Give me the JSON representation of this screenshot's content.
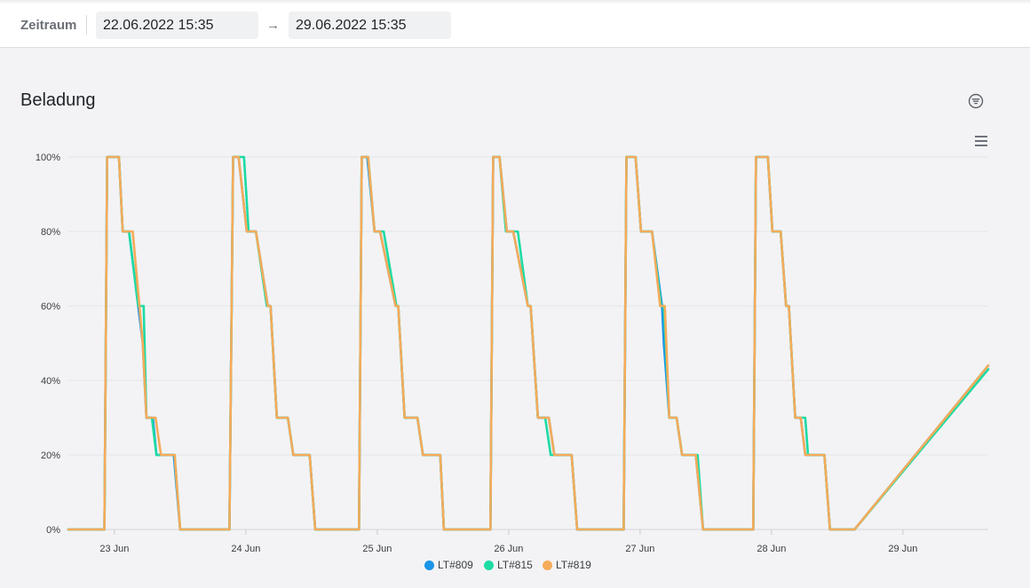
{
  "toolbar": {
    "range_label": "Zeitraum",
    "start_value": "22.06.2022 15:35",
    "end_value": "29.06.2022 15:35",
    "arrow": "→"
  },
  "card": {
    "title": "Beladung",
    "filter_icon": "filter-icon",
    "menu_icon": "hamburger-menu-icon"
  },
  "chart_data": {
    "type": "line",
    "title": "Beladung",
    "xlabel": "",
    "ylabel": "",
    "ylim": [
      0,
      100
    ],
    "yticks": [
      "0%",
      "20%",
      "40%",
      "60%",
      "80%",
      "100%"
    ],
    "xticks": [
      "23 Jun",
      "24 Jun",
      "25 Jun",
      "26 Jun",
      "27 Jun",
      "28 Jun",
      "29 Jun"
    ],
    "xlim": [
      "2022-06-22T15:35",
      "2022-06-29T15:35"
    ],
    "grid": true,
    "legend": "bottom",
    "series": [
      {
        "name": "LT#809",
        "color": "#1a95e8",
        "points": [
          [
            "2022-06-22T15:35",
            0
          ],
          [
            "2022-06-22T22:10",
            0
          ],
          [
            "2022-06-22T22:40",
            100
          ],
          [
            "2022-06-23T00:50",
            100
          ],
          [
            "2022-06-23T01:30",
            80
          ],
          [
            "2022-06-23T02:40",
            80
          ],
          [
            "2022-06-23T05:10",
            50
          ],
          [
            "2022-06-23T05:50",
            30
          ],
          [
            "2022-06-23T07:00",
            30
          ],
          [
            "2022-06-23T07:40",
            20
          ],
          [
            "2022-06-23T10:50",
            20
          ],
          [
            "2022-06-23T12:00",
            0
          ],
          [
            "2022-06-23T21:00",
            0
          ],
          [
            "2022-06-23T21:40",
            100
          ],
          [
            "2022-06-23T22:40",
            100
          ],
          [
            "2022-06-24T00:10",
            80
          ],
          [
            "2022-06-24T01:50",
            80
          ],
          [
            "2022-06-24T04:00",
            60
          ],
          [
            "2022-06-24T04:30",
            60
          ],
          [
            "2022-06-24T05:40",
            30
          ],
          [
            "2022-06-24T07:40",
            30
          ],
          [
            "2022-06-24T08:40",
            20
          ],
          [
            "2022-06-24T11:40",
            20
          ],
          [
            "2022-06-24T12:40",
            0
          ],
          [
            "2022-06-24T20:40",
            0
          ],
          [
            "2022-06-24T21:10",
            100
          ],
          [
            "2022-06-24T22:10",
            100
          ],
          [
            "2022-06-24T23:30",
            80
          ],
          [
            "2022-06-25T00:30",
            80
          ],
          [
            "2022-06-25T03:20",
            60
          ],
          [
            "2022-06-25T03:50",
            60
          ],
          [
            "2022-06-25T05:00",
            30
          ],
          [
            "2022-06-25T07:20",
            30
          ],
          [
            "2022-06-25T08:20",
            20
          ],
          [
            "2022-06-25T11:30",
            20
          ],
          [
            "2022-06-25T12:10",
            0
          ],
          [
            "2022-06-25T20:40",
            0
          ],
          [
            "2022-06-25T21:10",
            100
          ],
          [
            "2022-06-25T22:20",
            100
          ],
          [
            "2022-06-25T23:40",
            80
          ],
          [
            "2022-06-26T00:50",
            80
          ],
          [
            "2022-06-26T03:30",
            60
          ],
          [
            "2022-06-26T04:00",
            60
          ],
          [
            "2022-06-26T05:20",
            30
          ],
          [
            "2022-06-26T07:20",
            30
          ],
          [
            "2022-06-26T08:20",
            20
          ],
          [
            "2022-06-26T11:30",
            20
          ],
          [
            "2022-06-26T12:30",
            0
          ],
          [
            "2022-06-26T21:00",
            0
          ],
          [
            "2022-06-26T21:30",
            100
          ],
          [
            "2022-06-26T23:10",
            100
          ],
          [
            "2022-06-27T00:10",
            80
          ],
          [
            "2022-06-27T02:10",
            80
          ],
          [
            "2022-06-27T04:00",
            60
          ],
          [
            "2022-06-27T04:20",
            50
          ],
          [
            "2022-06-27T05:20",
            30
          ],
          [
            "2022-06-27T06:40",
            30
          ],
          [
            "2022-06-27T07:40",
            20
          ],
          [
            "2022-06-27T10:10",
            20
          ],
          [
            "2022-06-27T11:30",
            0
          ],
          [
            "2022-06-27T20:40",
            0
          ],
          [
            "2022-06-27T21:10",
            100
          ],
          [
            "2022-06-27T23:20",
            100
          ],
          [
            "2022-06-28T00:10",
            80
          ],
          [
            "2022-06-28T01:40",
            80
          ],
          [
            "2022-06-28T02:40",
            60
          ],
          [
            "2022-06-28T03:10",
            60
          ],
          [
            "2022-06-28T04:20",
            30
          ],
          [
            "2022-06-28T05:20",
            30
          ],
          [
            "2022-06-28T06:10",
            20
          ],
          [
            "2022-06-28T09:40",
            20
          ],
          [
            "2022-06-28T10:40",
            0
          ],
          [
            "2022-06-28T15:10",
            0
          ],
          [
            "2022-06-29T15:35",
            44
          ]
        ]
      },
      {
        "name": "LT#815",
        "color": "#1ddba4",
        "points": [
          [
            "2022-06-22T15:35",
            0
          ],
          [
            "2022-06-22T22:10",
            0
          ],
          [
            "2022-06-22T22:40",
            100
          ],
          [
            "2022-06-23T00:50",
            100
          ],
          [
            "2022-06-23T01:30",
            80
          ],
          [
            "2022-06-23T02:40",
            80
          ],
          [
            "2022-06-23T04:20",
            60
          ],
          [
            "2022-06-23T05:20",
            60
          ],
          [
            "2022-06-23T05:50",
            30
          ],
          [
            "2022-06-23T06:50",
            30
          ],
          [
            "2022-06-23T07:40",
            20
          ],
          [
            "2022-06-23T11:00",
            20
          ],
          [
            "2022-06-23T12:00",
            0
          ],
          [
            "2022-06-23T21:00",
            0
          ],
          [
            "2022-06-23T21:40",
            100
          ],
          [
            "2022-06-23T23:40",
            100
          ],
          [
            "2022-06-24T00:30",
            80
          ],
          [
            "2022-06-24T01:50",
            80
          ],
          [
            "2022-06-24T03:50",
            60
          ],
          [
            "2022-06-24T04:30",
            60
          ],
          [
            "2022-06-24T05:40",
            30
          ],
          [
            "2022-06-24T07:40",
            30
          ],
          [
            "2022-06-24T08:40",
            20
          ],
          [
            "2022-06-24T11:40",
            20
          ],
          [
            "2022-06-24T12:40",
            0
          ],
          [
            "2022-06-24T20:40",
            0
          ],
          [
            "2022-06-24T21:10",
            100
          ],
          [
            "2022-06-24T22:20",
            100
          ],
          [
            "2022-06-24T23:30",
            80
          ],
          [
            "2022-06-25T01:10",
            80
          ],
          [
            "2022-06-25T03:30",
            60
          ],
          [
            "2022-06-25T03:50",
            60
          ],
          [
            "2022-06-25T05:00",
            30
          ],
          [
            "2022-06-25T07:20",
            30
          ],
          [
            "2022-06-25T08:20",
            20
          ],
          [
            "2022-06-25T11:30",
            20
          ],
          [
            "2022-06-25T12:10",
            0
          ],
          [
            "2022-06-25T20:40",
            0
          ],
          [
            "2022-06-25T21:10",
            100
          ],
          [
            "2022-06-25T22:20",
            100
          ],
          [
            "2022-06-25T23:30",
            80
          ],
          [
            "2022-06-26T01:40",
            80
          ],
          [
            "2022-06-26T03:30",
            60
          ],
          [
            "2022-06-26T04:00",
            60
          ],
          [
            "2022-06-26T05:20",
            30
          ],
          [
            "2022-06-26T06:40",
            30
          ],
          [
            "2022-06-26T07:40",
            20
          ],
          [
            "2022-06-26T11:30",
            20
          ],
          [
            "2022-06-26T12:30",
            0
          ],
          [
            "2022-06-26T21:00",
            0
          ],
          [
            "2022-06-26T21:30",
            100
          ],
          [
            "2022-06-26T23:10",
            100
          ],
          [
            "2022-06-27T00:10",
            80
          ],
          [
            "2022-06-27T02:10",
            80
          ],
          [
            "2022-06-27T03:50",
            60
          ],
          [
            "2022-06-27T04:20",
            60
          ],
          [
            "2022-06-27T05:20",
            30
          ],
          [
            "2022-06-27T06:40",
            30
          ],
          [
            "2022-06-27T07:40",
            20
          ],
          [
            "2022-06-27T10:10",
            20
          ],
          [
            "2022-06-27T10:30",
            20
          ],
          [
            "2022-06-27T11:30",
            0
          ],
          [
            "2022-06-27T20:40",
            0
          ],
          [
            "2022-06-27T21:10",
            100
          ],
          [
            "2022-06-27T23:20",
            100
          ],
          [
            "2022-06-28T00:10",
            80
          ],
          [
            "2022-06-28T01:40",
            80
          ],
          [
            "2022-06-28T02:40",
            60
          ],
          [
            "2022-06-28T03:10",
            60
          ],
          [
            "2022-06-28T04:20",
            30
          ],
          [
            "2022-06-28T06:10",
            30
          ],
          [
            "2022-06-28T06:40",
            20
          ],
          [
            "2022-06-28T09:40",
            20
          ],
          [
            "2022-06-28T10:40",
            0
          ],
          [
            "2022-06-28T15:10",
            0
          ],
          [
            "2022-06-29T15:35",
            43
          ]
        ]
      },
      {
        "name": "LT#819",
        "color": "#f5ab5a",
        "points": [
          [
            "2022-06-22T15:35",
            0
          ],
          [
            "2022-06-22T22:10",
            0
          ],
          [
            "2022-06-22T22:40",
            100
          ],
          [
            "2022-06-23T00:50",
            100
          ],
          [
            "2022-06-23T01:30",
            80
          ],
          [
            "2022-06-23T03:20",
            80
          ],
          [
            "2022-06-23T05:10",
            50
          ],
          [
            "2022-06-23T05:50",
            30
          ],
          [
            "2022-06-23T07:30",
            30
          ],
          [
            "2022-06-23T08:30",
            20
          ],
          [
            "2022-06-23T11:00",
            20
          ],
          [
            "2022-06-23T12:00",
            0
          ],
          [
            "2022-06-23T21:00",
            0
          ],
          [
            "2022-06-23T21:40",
            100
          ],
          [
            "2022-06-23T22:40",
            100
          ],
          [
            "2022-06-24T00:10",
            80
          ],
          [
            "2022-06-24T01:50",
            80
          ],
          [
            "2022-06-24T04:00",
            60
          ],
          [
            "2022-06-24T04:30",
            60
          ],
          [
            "2022-06-24T05:40",
            30
          ],
          [
            "2022-06-24T07:40",
            30
          ],
          [
            "2022-06-24T08:40",
            20
          ],
          [
            "2022-06-24T11:40",
            20
          ],
          [
            "2022-06-24T12:40",
            0
          ],
          [
            "2022-06-24T20:40",
            0
          ],
          [
            "2022-06-24T21:10",
            100
          ],
          [
            "2022-06-24T22:20",
            100
          ],
          [
            "2022-06-24T23:30",
            80
          ],
          [
            "2022-06-25T00:30",
            80
          ],
          [
            "2022-06-25T03:20",
            60
          ],
          [
            "2022-06-25T03:50",
            60
          ],
          [
            "2022-06-25T05:00",
            30
          ],
          [
            "2022-06-25T07:20",
            30
          ],
          [
            "2022-06-25T08:20",
            20
          ],
          [
            "2022-06-25T11:30",
            20
          ],
          [
            "2022-06-25T12:10",
            0
          ],
          [
            "2022-06-25T20:40",
            0
          ],
          [
            "2022-06-25T21:10",
            100
          ],
          [
            "2022-06-25T22:20",
            100
          ],
          [
            "2022-06-25T23:40",
            80
          ],
          [
            "2022-06-26T00:50",
            80
          ],
          [
            "2022-06-26T03:30",
            60
          ],
          [
            "2022-06-26T04:00",
            60
          ],
          [
            "2022-06-26T05:20",
            30
          ],
          [
            "2022-06-26T07:20",
            30
          ],
          [
            "2022-06-26T08:20",
            20
          ],
          [
            "2022-06-26T11:30",
            20
          ],
          [
            "2022-06-26T12:30",
            0
          ],
          [
            "2022-06-26T21:00",
            0
          ],
          [
            "2022-06-26T21:30",
            100
          ],
          [
            "2022-06-26T23:10",
            100
          ],
          [
            "2022-06-27T00:10",
            80
          ],
          [
            "2022-06-27T02:10",
            80
          ],
          [
            "2022-06-27T03:40",
            60
          ],
          [
            "2022-06-27T04:30",
            60
          ],
          [
            "2022-06-27T05:20",
            30
          ],
          [
            "2022-06-27T06:40",
            30
          ],
          [
            "2022-06-27T07:40",
            20
          ],
          [
            "2022-06-27T10:10",
            20
          ],
          [
            "2022-06-27T11:30",
            0
          ],
          [
            "2022-06-27T20:40",
            0
          ],
          [
            "2022-06-27T21:10",
            100
          ],
          [
            "2022-06-27T23:20",
            100
          ],
          [
            "2022-06-28T00:10",
            80
          ],
          [
            "2022-06-28T01:40",
            80
          ],
          [
            "2022-06-28T02:40",
            60
          ],
          [
            "2022-06-28T03:10",
            60
          ],
          [
            "2022-06-28T04:20",
            30
          ],
          [
            "2022-06-28T05:20",
            30
          ],
          [
            "2022-06-28T06:10",
            20
          ],
          [
            "2022-06-28T09:40",
            20
          ],
          [
            "2022-06-28T10:40",
            0
          ],
          [
            "2022-06-28T15:10",
            0
          ],
          [
            "2022-06-29T15:35",
            44
          ]
        ]
      }
    ]
  }
}
